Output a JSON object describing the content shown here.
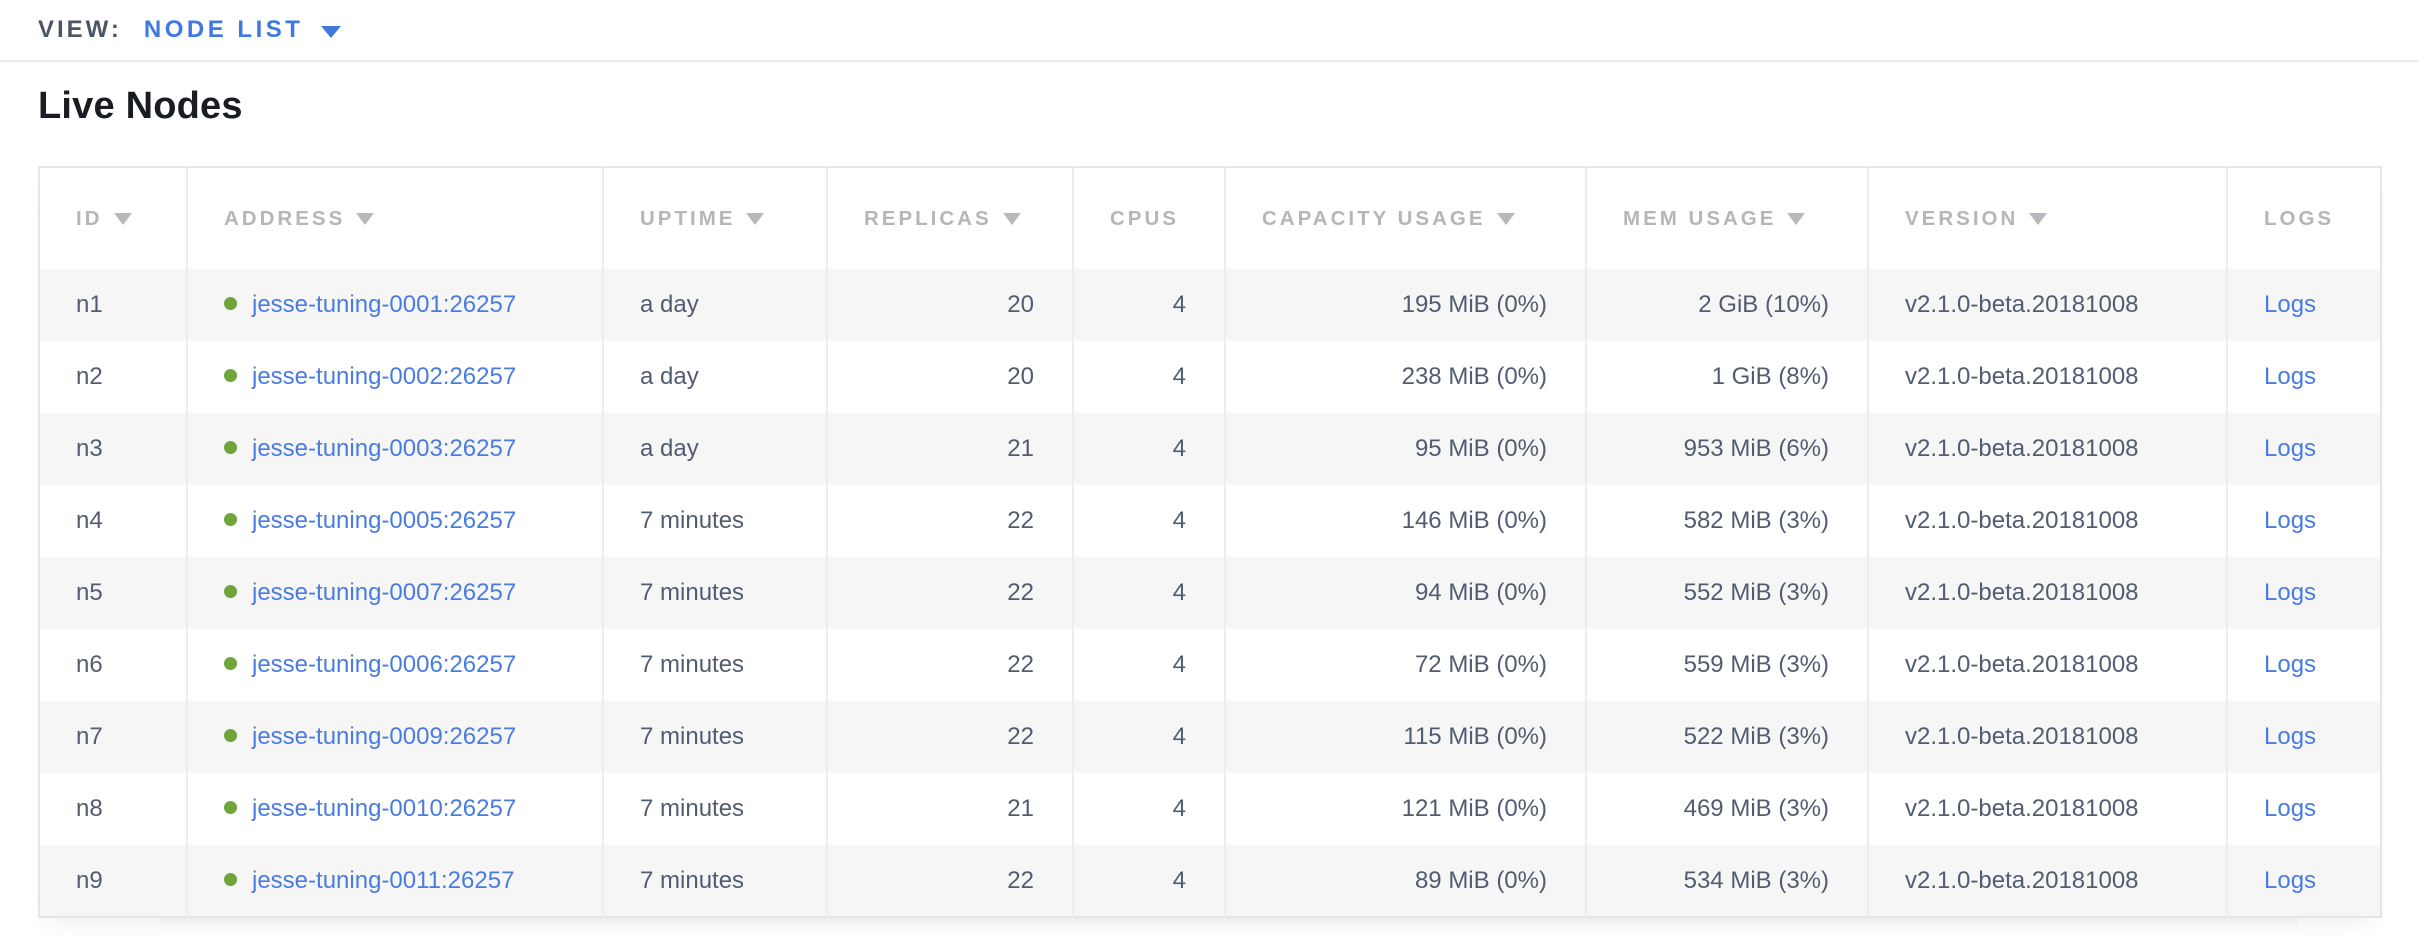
{
  "view_bar": {
    "label": "VIEW:",
    "selected": "NODE LIST"
  },
  "page": {
    "title": "Live Nodes"
  },
  "colors": {
    "link_blue": "#4a7ce0",
    "accent_blue": "#3e78e0",
    "live_dot_green": "#6ea63d",
    "header_text_gray": "#b3b6ba",
    "cell_text_slate": "#525c70",
    "row_stripe": "#f6f6f7"
  },
  "table": {
    "columns": [
      {
        "key": "id",
        "label": "ID",
        "sortable": true,
        "align": "left"
      },
      {
        "key": "address",
        "label": "ADDRESS",
        "sortable": true,
        "align": "left"
      },
      {
        "key": "uptime",
        "label": "UPTIME",
        "sortable": true,
        "align": "left"
      },
      {
        "key": "replicas",
        "label": "REPLICAS",
        "sortable": true,
        "align": "right"
      },
      {
        "key": "cpus",
        "label": "CPUS",
        "sortable": false,
        "align": "right"
      },
      {
        "key": "capacity",
        "label": "CAPACITY USAGE",
        "sortable": true,
        "align": "right"
      },
      {
        "key": "mem",
        "label": "MEM USAGE",
        "sortable": true,
        "align": "right"
      },
      {
        "key": "version",
        "label": "VERSION",
        "sortable": true,
        "align": "left"
      },
      {
        "key": "logs",
        "label": "LOGS",
        "sortable": false,
        "align": "left"
      }
    ],
    "rows": [
      {
        "id": "n1",
        "address": "jesse-tuning-0001:26257",
        "live": true,
        "uptime": "a day",
        "replicas": "20",
        "cpus": "4",
        "capacity": "195 MiB (0%)",
        "mem": "2 GiB (10%)",
        "version": "v2.1.0-beta.20181008",
        "logs": "Logs"
      },
      {
        "id": "n2",
        "address": "jesse-tuning-0002:26257",
        "live": true,
        "uptime": "a day",
        "replicas": "20",
        "cpus": "4",
        "capacity": "238 MiB (0%)",
        "mem": "1 GiB (8%)",
        "version": "v2.1.0-beta.20181008",
        "logs": "Logs"
      },
      {
        "id": "n3",
        "address": "jesse-tuning-0003:26257",
        "live": true,
        "uptime": "a day",
        "replicas": "21",
        "cpus": "4",
        "capacity": "95 MiB (0%)",
        "mem": "953 MiB (6%)",
        "version": "v2.1.0-beta.20181008",
        "logs": "Logs"
      },
      {
        "id": "n4",
        "address": "jesse-tuning-0005:26257",
        "live": true,
        "uptime": "7 minutes",
        "replicas": "22",
        "cpus": "4",
        "capacity": "146 MiB (0%)",
        "mem": "582 MiB (3%)",
        "version": "v2.1.0-beta.20181008",
        "logs": "Logs"
      },
      {
        "id": "n5",
        "address": "jesse-tuning-0007:26257",
        "live": true,
        "uptime": "7 minutes",
        "replicas": "22",
        "cpus": "4",
        "capacity": "94 MiB (0%)",
        "mem": "552 MiB (3%)",
        "version": "v2.1.0-beta.20181008",
        "logs": "Logs"
      },
      {
        "id": "n6",
        "address": "jesse-tuning-0006:26257",
        "live": true,
        "uptime": "7 minutes",
        "replicas": "22",
        "cpus": "4",
        "capacity": "72 MiB (0%)",
        "mem": "559 MiB (3%)",
        "version": "v2.1.0-beta.20181008",
        "logs": "Logs"
      },
      {
        "id": "n7",
        "address": "jesse-tuning-0009:26257",
        "live": true,
        "uptime": "7 minutes",
        "replicas": "22",
        "cpus": "4",
        "capacity": "115 MiB (0%)",
        "mem": "522 MiB (3%)",
        "version": "v2.1.0-beta.20181008",
        "logs": "Logs"
      },
      {
        "id": "n8",
        "address": "jesse-tuning-0010:26257",
        "live": true,
        "uptime": "7 minutes",
        "replicas": "21",
        "cpus": "4",
        "capacity": "121 MiB (0%)",
        "mem": "469 MiB (3%)",
        "version": "v2.1.0-beta.20181008",
        "logs": "Logs"
      },
      {
        "id": "n9",
        "address": "jesse-tuning-0011:26257",
        "live": true,
        "uptime": "7 minutes",
        "replicas": "22",
        "cpus": "4",
        "capacity": "89 MiB (0%)",
        "mem": "534 MiB (3%)",
        "version": "v2.1.0-beta.20181008",
        "logs": "Logs"
      }
    ]
  }
}
